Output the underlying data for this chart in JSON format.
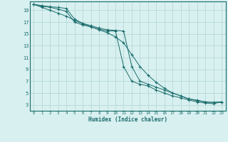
{
  "xlabel": "Humidex (Indice chaleur)",
  "bg_color": "#d8f0f0",
  "grid_color": "#b0d4d4",
  "line_color": "#1a6b6b",
  "xlim": [
    -0.5,
    23.5
  ],
  "ylim": [
    2.0,
    20.5
  ],
  "xticks": [
    0,
    1,
    2,
    3,
    4,
    5,
    6,
    7,
    8,
    9,
    10,
    11,
    12,
    13,
    14,
    15,
    16,
    17,
    18,
    19,
    20,
    21,
    22,
    23
  ],
  "yticks": [
    3,
    5,
    7,
    9,
    11,
    13,
    15,
    17,
    19
  ],
  "line1_x": [
    0,
    1,
    2,
    3,
    4,
    5,
    6,
    7,
    8,
    9,
    10,
    11,
    12,
    13,
    14,
    15,
    16,
    17,
    18,
    19,
    20,
    21,
    22,
    23
  ],
  "line1_y": [
    20,
    19.7,
    19.5,
    19.2,
    18.8,
    17.0,
    16.5,
    16.2,
    15.8,
    15.5,
    15.5,
    9.5,
    7.0,
    6.5,
    6.2,
    5.5,
    5.0,
    4.5,
    4.2,
    3.8,
    3.5,
    3.3,
    3.2,
    3.5
  ],
  "line2_x": [
    0,
    1,
    2,
    3,
    4,
    5,
    6,
    7,
    8,
    9,
    10,
    11,
    12,
    13,
    14,
    15,
    16,
    17,
    18,
    19,
    20,
    21,
    22,
    23
  ],
  "line2_y": [
    20,
    19.8,
    19.6,
    19.5,
    19.3,
    17.5,
    16.8,
    16.4,
    16.0,
    15.7,
    15.6,
    15.5,
    9.5,
    7.0,
    6.5,
    6.0,
    5.5,
    5.0,
    4.5,
    4.0,
    3.8,
    3.5,
    3.4,
    3.5
  ],
  "line3_x": [
    0,
    1,
    2,
    3,
    4,
    5,
    6,
    7,
    8,
    9,
    10,
    11,
    12,
    13,
    14,
    15,
    16,
    17,
    18,
    19,
    20,
    21,
    22,
    23
  ],
  "line3_y": [
    20,
    19.5,
    19.0,
    18.5,
    18.0,
    17.3,
    16.7,
    16.2,
    15.7,
    15.2,
    14.5,
    13.5,
    11.5,
    9.5,
    8.0,
    6.8,
    5.8,
    5.0,
    4.5,
    4.0,
    3.7,
    3.5,
    3.4,
    3.5
  ]
}
